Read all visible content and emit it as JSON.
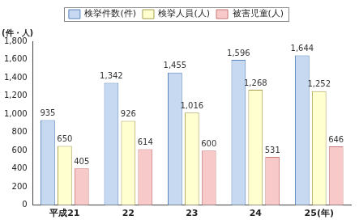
{
  "chart_data": {
    "type": "bar",
    "y_label": "(件・人)",
    "categories": [
      "平成21",
      "22",
      "23",
      "24",
      "25(年)"
    ],
    "series": [
      {
        "name": "検挙件数(件)",
        "color": "#c6d9f0",
        "values": [
          935,
          1342,
          1455,
          1596,
          1644
        ],
        "value_labels": [
          "935",
          "1,342",
          "1,455",
          "1,596",
          "1,644"
        ]
      },
      {
        "name": "検挙人員(人)",
        "color": "#ffffd0",
        "values": [
          650,
          926,
          1016,
          1268,
          1252
        ],
        "value_labels": [
          "650",
          "926",
          "1,016",
          "1,268",
          "1,252"
        ]
      },
      {
        "name": "被害児童(人)",
        "color": "#f8c9c9",
        "values": [
          405,
          614,
          600,
          531,
          646
        ],
        "value_labels": [
          "405",
          "614",
          "600",
          "531",
          "646"
        ]
      }
    ],
    "ylim": [
      0,
      1800
    ],
    "yticks": [
      0,
      200,
      400,
      600,
      800,
      {
        "value": 1000,
        "label": "1,000"
      },
      {
        "value": 1200,
        "label": "1,200"
      },
      {
        "value": 1400,
        "label": "1,400"
      },
      {
        "value": 1600,
        "label": "1,600"
      },
      {
        "value": 1800,
        "label": "1,800"
      }
    ],
    "grid": false,
    "legend": "top",
    "data_labels": true
  }
}
